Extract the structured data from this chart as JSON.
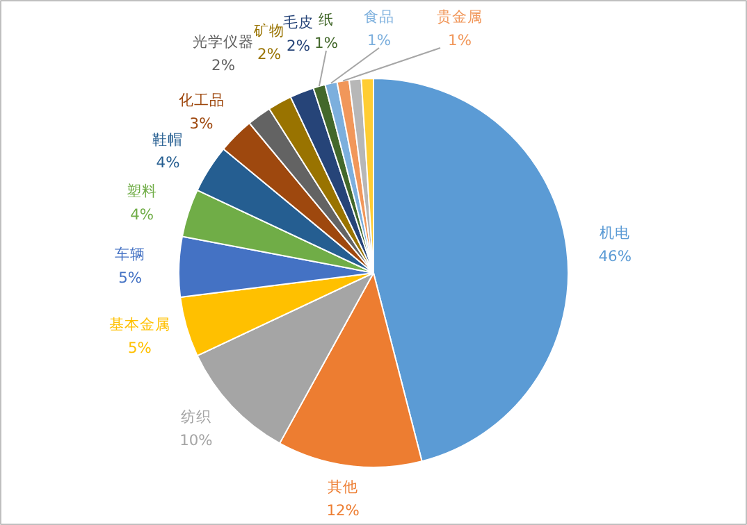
{
  "chart_data": {
    "type": "pie",
    "categories": [
      "机电",
      "其他",
      "纺织",
      "基本金属",
      "车辆",
      "塑料",
      "鞋帽",
      "化工品",
      "光学仪器",
      "矿物",
      "毛皮",
      "纸",
      "食品",
      "贵金属",
      null,
      null
    ],
    "values": [
      46,
      12,
      10,
      5,
      5,
      4,
      4,
      3,
      2,
      2,
      2,
      1,
      1,
      1,
      1,
      1
    ],
    "colors": [
      "#5b9bd5",
      "#ed7d31",
      "#a5a5a5",
      "#ffc000",
      "#4472c4",
      "#70ad47",
      "#255e91",
      "#9e480e",
      "#636363",
      "#997300",
      "#264478",
      "#43682b",
      "#7cafdd",
      "#f1975a",
      "#b7b7b7",
      "#ffcd33"
    ],
    "value_labels": [
      "46%",
      "12%",
      "10%",
      "5%",
      "5%",
      "4%",
      "4%",
      "3%",
      "2%",
      "2%",
      "2%",
      "1%",
      "1%",
      "1%",
      null,
      null
    ]
  }
}
